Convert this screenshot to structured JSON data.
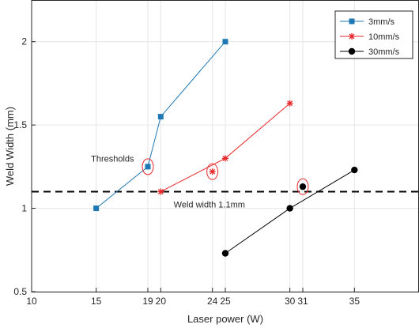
{
  "chart_data": {
    "type": "line",
    "xlabel": "Laser power (W)",
    "ylabel": "Weld Width (mm)",
    "xlim": [
      10,
      40
    ],
    "ylim": [
      0.5,
      2.25
    ],
    "xticks": [
      10,
      15,
      19,
      20,
      24,
      25,
      30,
      31,
      35
    ],
    "yticks": [
      0.5,
      1,
      1.5,
      2
    ],
    "grid": true,
    "legend_position": "top-right",
    "series": [
      {
        "name": "3mm/s",
        "color": "#1f77b4",
        "marker": "square",
        "x": [
          15,
          19,
          20,
          25
        ],
        "y": [
          1.0,
          1.25,
          1.55,
          2.0
        ]
      },
      {
        "name": "10mm/s",
        "color": "#e8282b",
        "marker": "star",
        "x": [
          20,
          25,
          30
        ],
        "y": [
          1.1,
          1.3,
          1.63
        ]
      },
      {
        "name": "30mm/s",
        "color": "#000000",
        "marker": "circle",
        "x": [
          25,
          30,
          35
        ],
        "y": [
          0.73,
          1.0,
          1.23
        ]
      }
    ],
    "extra_markers": [
      {
        "series": 1,
        "x": 24,
        "y": 1.22
      },
      {
        "series": 2,
        "x": 31,
        "y": 1.13
      }
    ],
    "reference_line": {
      "y": 1.1,
      "label": "Weld width 1.1mm",
      "style": "dashed"
    },
    "annotation_text": "Thresholds",
    "threshold_circles": [
      {
        "x": 19,
        "y": 1.25
      },
      {
        "x": 24,
        "y": 1.22
      },
      {
        "x": 31,
        "y": 1.13
      }
    ]
  }
}
